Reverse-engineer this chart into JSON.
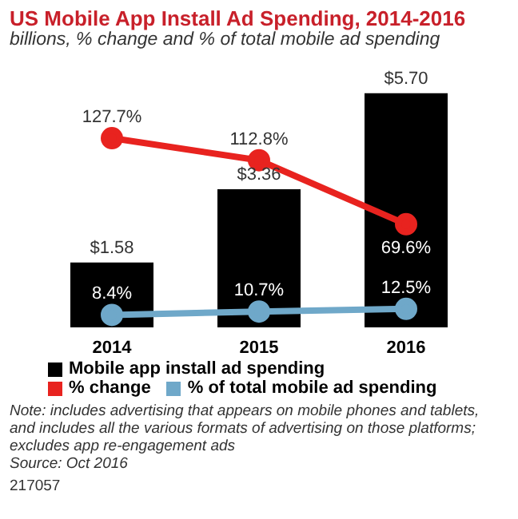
{
  "chart_data": {
    "type": "bar",
    "title": "US Mobile App Install Ad Spending, 2014-2016",
    "subtitle": "billions, % change and % of total mobile ad spending",
    "categories": [
      "2014",
      "2015",
      "2016"
    ],
    "series": [
      {
        "name": "Mobile app install ad spending",
        "color": "#000000",
        "values": [
          1.58,
          3.36,
          5.7
        ],
        "value_labels": [
          "$1.58",
          "$3.36",
          "$5.70"
        ]
      },
      {
        "name": "% change",
        "type": "line",
        "axis": "y2",
        "color": "#e8231f",
        "values": [
          127.7,
          112.8,
          69.6
        ],
        "value_labels": [
          "127.7%",
          "112.8%",
          "69.6%"
        ]
      },
      {
        "name": "% of total mobile ad spending",
        "type": "line",
        "axis": "y2",
        "color": "#6fa8c9",
        "values": [
          8.4,
          10.7,
          12.5
        ],
        "value_labels": [
          "8.4%",
          "10.7%",
          "12.5%"
        ]
      }
    ],
    "marker": "circle",
    "legend": "bottom",
    "tick_labels": "x",
    "annotations": [
      "Note: includes advertising that appears on mobile phones and tablets, and includes all the various formats of advertising on those platforms; excludes app re-engagement ads",
      "Source: Oct 2016",
      "217057"
    ]
  }
}
